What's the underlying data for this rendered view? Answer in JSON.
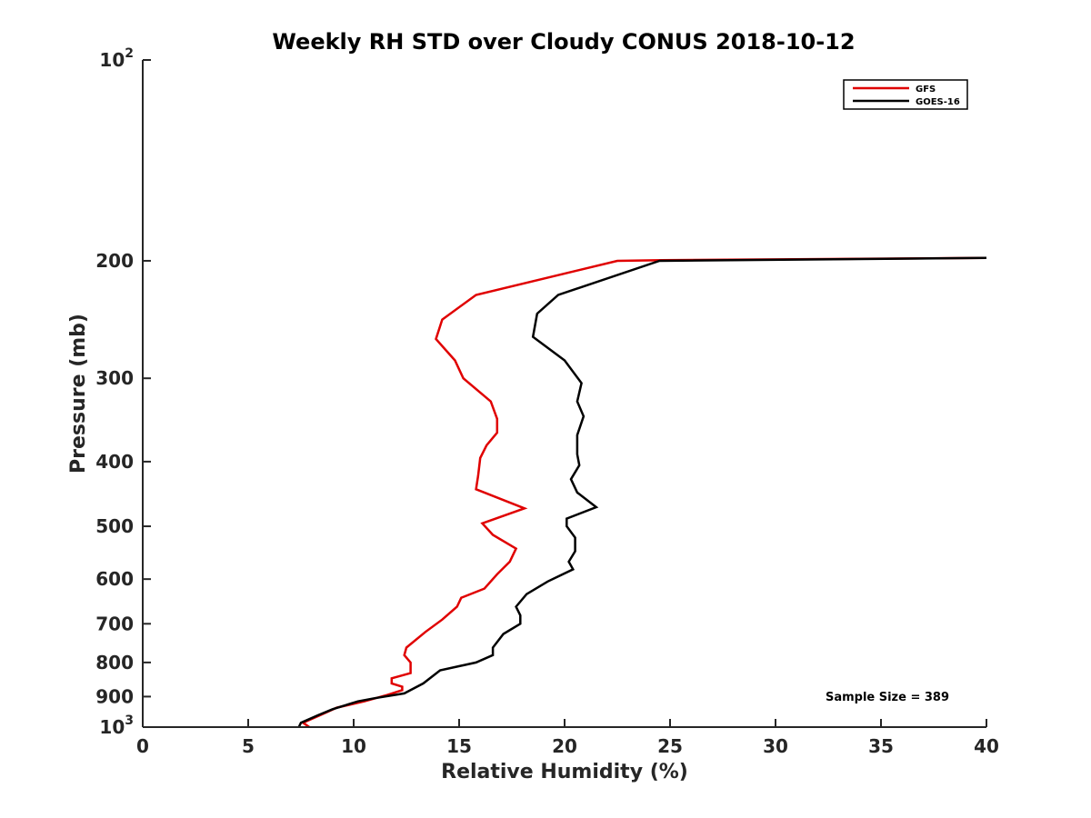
{
  "chart_data": {
    "type": "line",
    "title": "Weekly RH STD over Cloudy CONUS 2018-10-12",
    "xlabel": "Relative Humidity (%)",
    "ylabel": "Pressure (mb)",
    "xlim": [
      0,
      40
    ],
    "ylim": [
      100,
      1000
    ],
    "y_scale": "log",
    "y_reversed": true,
    "grid": false,
    "legend_position": "top-right",
    "x_ticks": [
      0,
      5,
      10,
      15,
      20,
      25,
      30,
      35,
      40
    ],
    "y_ticks": [
      {
        "value": 100,
        "base": "10",
        "exp": "2"
      },
      {
        "value": 200,
        "label": "200"
      },
      {
        "value": 300,
        "label": "300"
      },
      {
        "value": 400,
        "label": "400"
      },
      {
        "value": 500,
        "label": "500"
      },
      {
        "value": 600,
        "label": "600"
      },
      {
        "value": 700,
        "label": "700"
      },
      {
        "value": 800,
        "label": "800"
      },
      {
        "value": 900,
        "label": "900"
      },
      {
        "value": 1000,
        "base": "10",
        "exp": "3"
      }
    ],
    "annotation": "Sample Size = 389",
    "series": [
      {
        "name": "GFS",
        "color": "#e00000",
        "points": [
          [
            40.0,
            198
          ],
          [
            24.6,
            199.5
          ],
          [
            22.5,
            200
          ],
          [
            15.8,
            225
          ],
          [
            14.2,
            245
          ],
          [
            13.9,
            262
          ],
          [
            14.8,
            282
          ],
          [
            15.2,
            300
          ],
          [
            16.5,
            325
          ],
          [
            16.8,
            345
          ],
          [
            16.8,
            362
          ],
          [
            16.3,
            378
          ],
          [
            16.0,
            395
          ],
          [
            15.9,
            420
          ],
          [
            15.8,
            440
          ],
          [
            18.1,
            470
          ],
          [
            16.1,
            495
          ],
          [
            16.6,
            515
          ],
          [
            17.7,
            540
          ],
          [
            17.4,
            565
          ],
          [
            16.8,
            590
          ],
          [
            16.2,
            620
          ],
          [
            15.1,
            640
          ],
          [
            14.9,
            660
          ],
          [
            14.2,
            690
          ],
          [
            13.4,
            720
          ],
          [
            12.5,
            760
          ],
          [
            12.4,
            780
          ],
          [
            12.7,
            800
          ],
          [
            12.7,
            830
          ],
          [
            11.8,
            845
          ],
          [
            11.8,
            860
          ],
          [
            12.3,
            870
          ],
          [
            12.3,
            880
          ],
          [
            11.6,
            895
          ],
          [
            10.5,
            915
          ],
          [
            9.2,
            935
          ],
          [
            8.4,
            960
          ],
          [
            7.6,
            985
          ],
          [
            7.9,
            1000
          ]
        ]
      },
      {
        "name": "GOES-16",
        "color": "#000000",
        "points": [
          [
            40.0,
            198
          ],
          [
            24.5,
            200
          ],
          [
            19.7,
            225
          ],
          [
            18.7,
            240
          ],
          [
            18.5,
            260
          ],
          [
            20.0,
            282
          ],
          [
            20.8,
            305
          ],
          [
            20.6,
            325
          ],
          [
            20.9,
            342
          ],
          [
            20.6,
            365
          ],
          [
            20.6,
            390
          ],
          [
            20.7,
            405
          ],
          [
            20.3,
            425
          ],
          [
            20.6,
            445
          ],
          [
            21.5,
            468
          ],
          [
            20.1,
            487
          ],
          [
            20.1,
            500
          ],
          [
            20.5,
            520
          ],
          [
            20.5,
            545
          ],
          [
            20.2,
            565
          ],
          [
            20.4,
            580
          ],
          [
            19.2,
            605
          ],
          [
            18.2,
            632
          ],
          [
            17.7,
            660
          ],
          [
            17.9,
            680
          ],
          [
            17.9,
            700
          ],
          [
            17.1,
            725
          ],
          [
            16.6,
            760
          ],
          [
            16.6,
            780
          ],
          [
            15.8,
            800
          ],
          [
            14.1,
            822
          ],
          [
            13.3,
            860
          ],
          [
            12.4,
            890
          ],
          [
            11.0,
            905
          ],
          [
            10.2,
            915
          ],
          [
            9.0,
            940
          ],
          [
            8.3,
            960
          ],
          [
            7.5,
            985
          ],
          [
            7.4,
            1000
          ]
        ]
      }
    ]
  }
}
